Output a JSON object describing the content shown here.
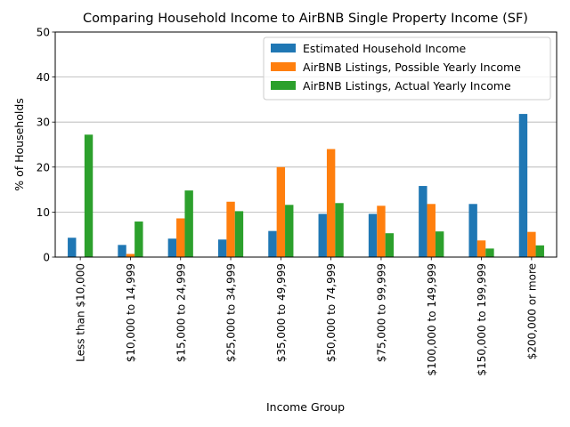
{
  "chart_data": {
    "type": "bar",
    "title": "Comparing Household Income to AirBNB Single Property Income (SF)",
    "xlabel": "Income Group",
    "ylabel": "% of Households",
    "ylim": [
      0,
      50
    ],
    "yticks": [
      0,
      10,
      20,
      30,
      40,
      50
    ],
    "grid": "horizontal",
    "legend_position": "upper-right",
    "categories": [
      "Less than $10,000",
      "$10,000 to 14,999",
      "$15,000 to 24,999",
      "$25,000 to 34,999",
      "$35,000 to 49,999",
      "$50,000 to 74,999",
      "$75,000 to 99,999",
      "$100,000 to 149,999",
      "$150,000 to 199,999",
      "$200,000 or more"
    ],
    "series": [
      {
        "name": "Estimated Household Income",
        "color": "#1f77b4",
        "values": [
          4.3,
          2.7,
          4.1,
          3.9,
          5.8,
          9.6,
          9.6,
          15.8,
          11.8,
          31.8
        ]
      },
      {
        "name": "AirBNB Listings, Possible Yearly Income",
        "color": "#ff7f0e",
        "values": [
          0.0,
          0.7,
          8.6,
          12.3,
          20.0,
          24.0,
          11.4,
          11.8,
          3.7,
          5.6
        ]
      },
      {
        "name": "AirBNB Listings, Actual Yearly Income",
        "color": "#2ca02c",
        "values": [
          27.2,
          7.9,
          14.8,
          10.2,
          11.6,
          12.0,
          5.3,
          5.7,
          1.9,
          2.6
        ]
      }
    ]
  }
}
